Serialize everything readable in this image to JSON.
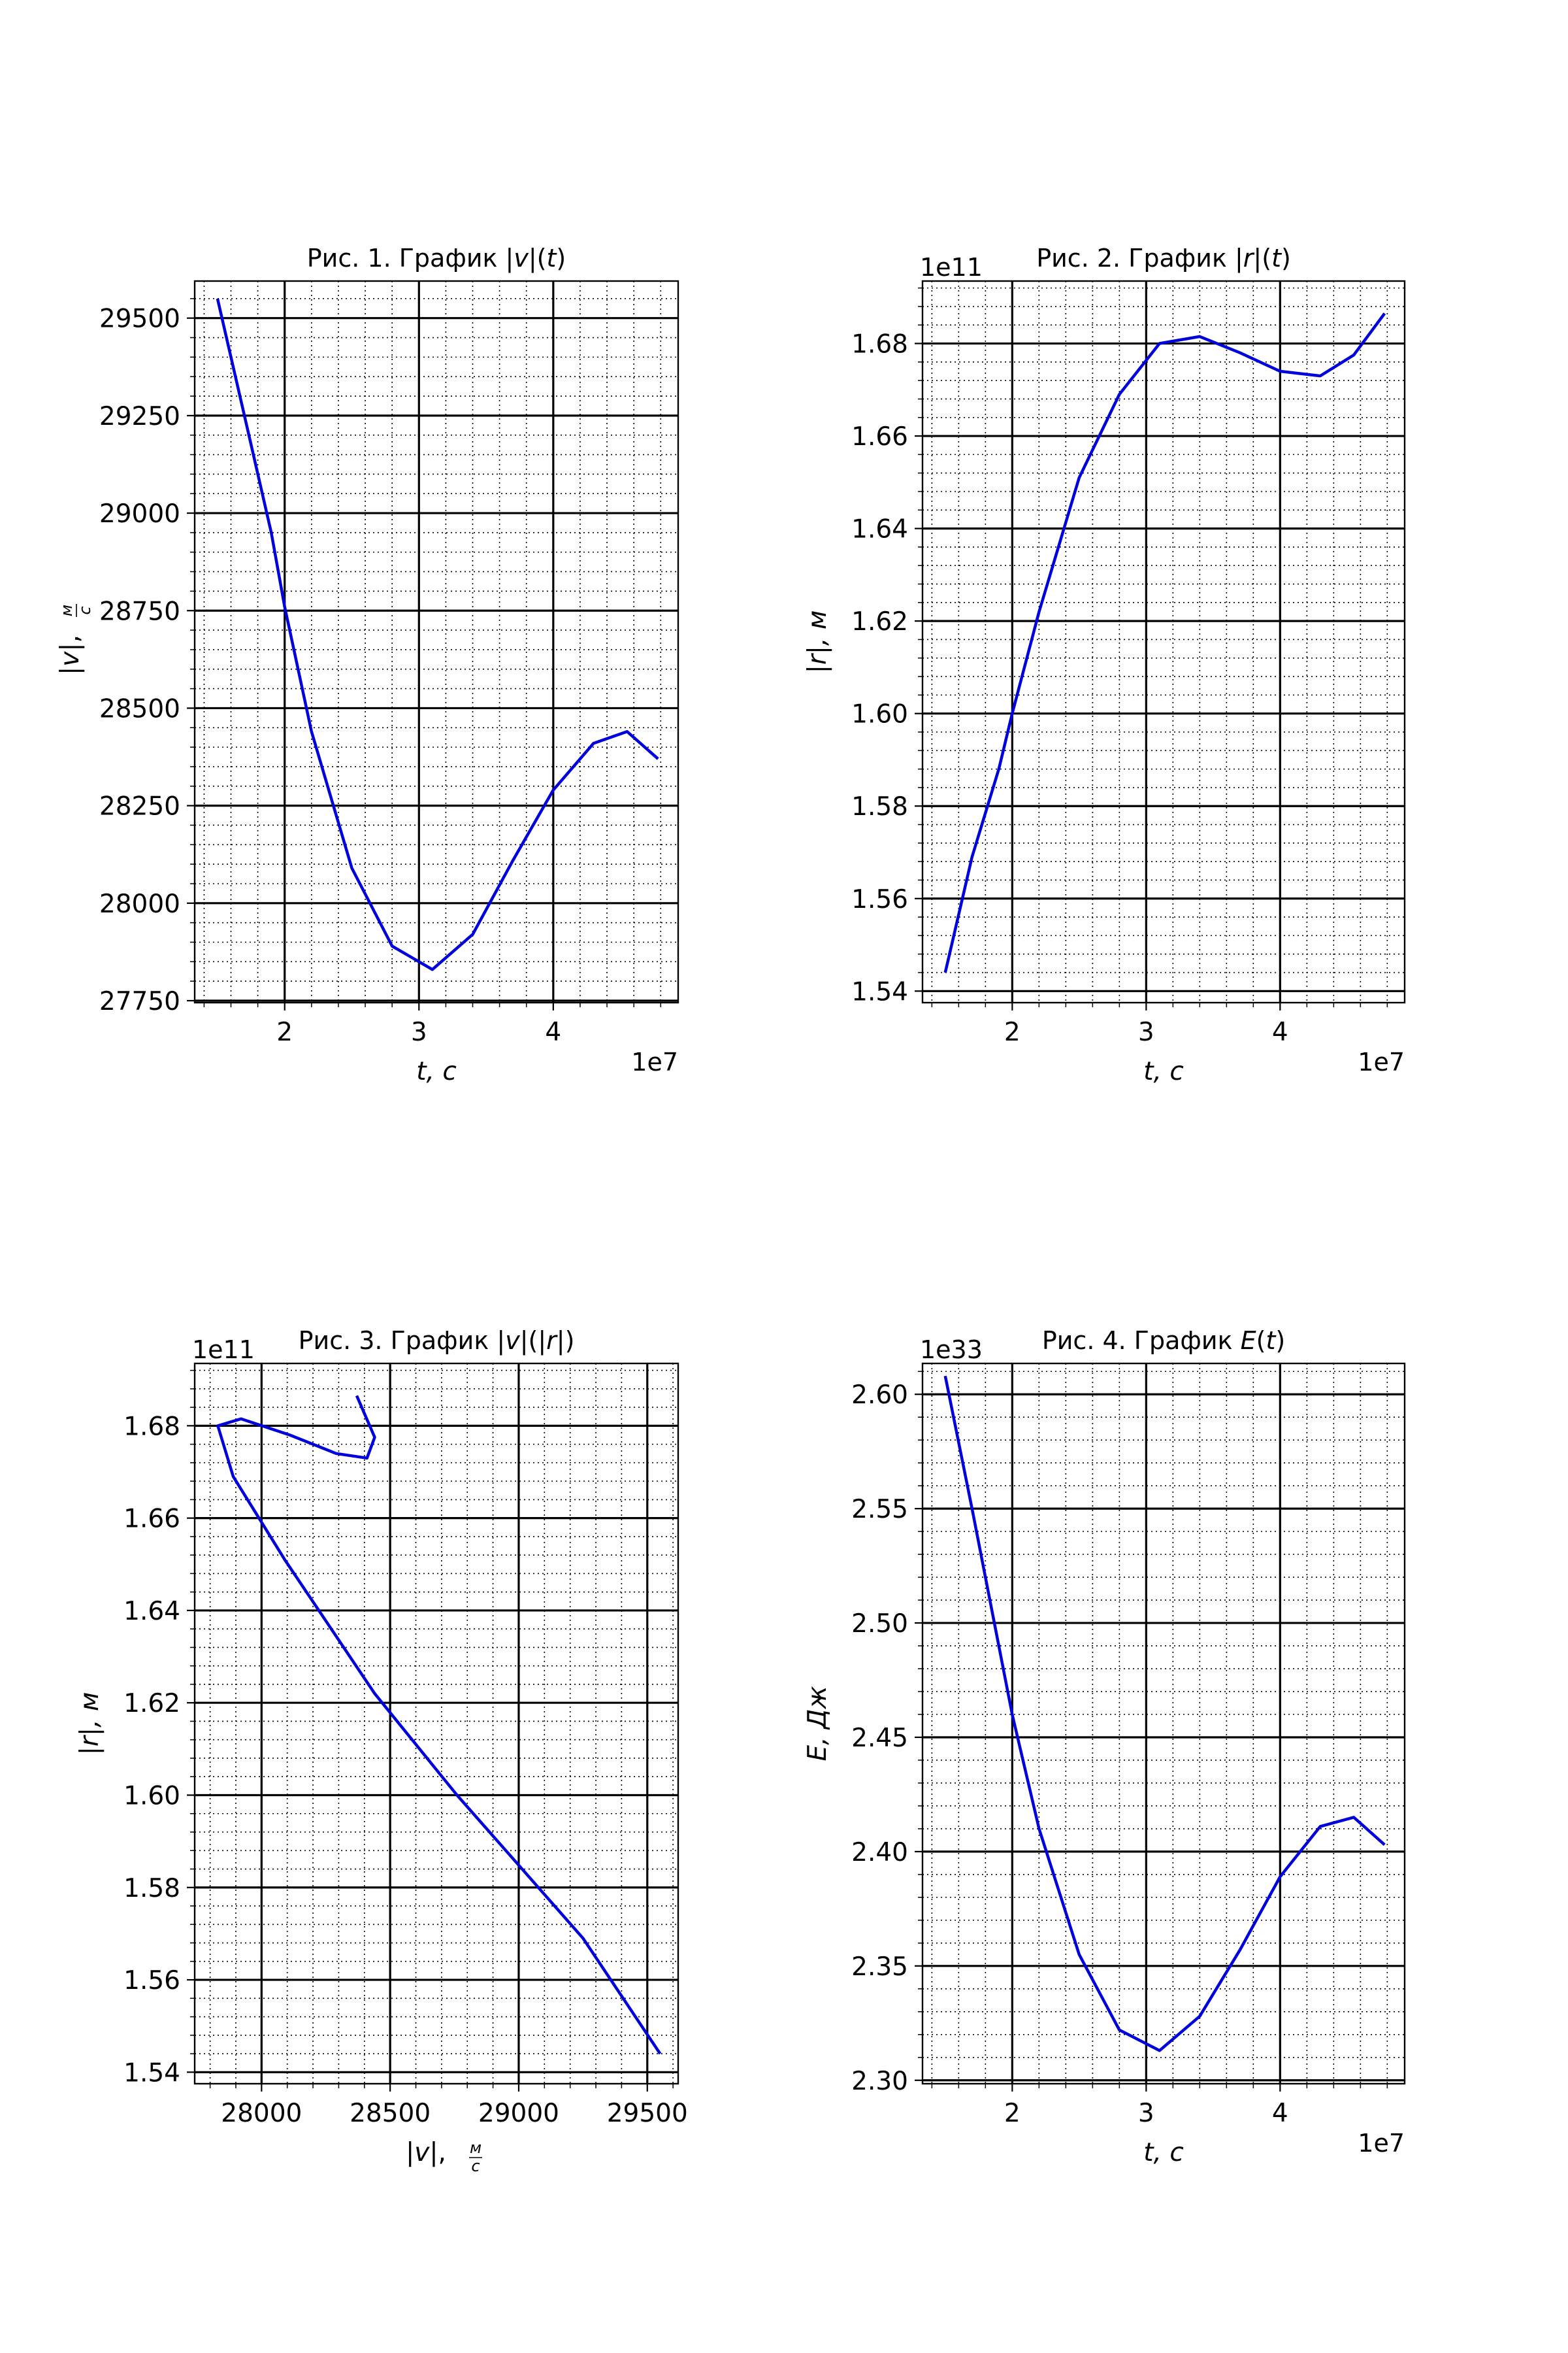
{
  "chart_data": [
    {
      "type": "line",
      "title": "Рис. 1. График |v|(t)",
      "xlabel": "t, c",
      "ylabel": "|v|, м/c",
      "x_offset_label": "1e7",
      "y_offset_label": "",
      "xlim": [
        1.33,
        4.93
      ],
      "ylim": [
        27745,
        29595
      ],
      "xticks": [
        2,
        3,
        4
      ],
      "xtick_labels": [
        "2",
        "3",
        "4"
      ],
      "yticks": [
        27750,
        28000,
        28250,
        28500,
        28750,
        29000,
        29250,
        29500
      ],
      "ytick_labels": [
        "27750",
        "28000",
        "28250",
        "28500",
        "28750",
        "29000",
        "29250",
        "29500"
      ],
      "grid": true,
      "color": "#0000dd",
      "x": [
        1.5,
        1.7,
        1.9,
        2.0,
        2.2,
        2.5,
        2.8,
        3.1,
        3.4,
        3.7,
        4.0,
        4.3,
        4.55,
        4.78
      ],
      "y": [
        29550,
        29250,
        28950,
        28760,
        28440,
        28090,
        27890,
        27830,
        27920,
        28110,
        28290,
        28410,
        28440,
        28370
      ]
    },
    {
      "type": "line",
      "title": "Рис. 2. График |r|(t)",
      "xlabel": "t, c",
      "ylabel": "|r|, м",
      "x_offset_label": "1e7",
      "y_offset_label": "1e11",
      "xlim": [
        1.33,
        4.93
      ],
      "ylim": [
        1.5375,
        1.6935
      ],
      "xticks": [
        2,
        3,
        4
      ],
      "xtick_labels": [
        "2",
        "3",
        "4"
      ],
      "yticks": [
        1.54,
        1.56,
        1.58,
        1.6,
        1.62,
        1.64,
        1.66,
        1.68
      ],
      "ytick_labels": [
        "1.54",
        "1.56",
        "1.58",
        "1.60",
        "1.62",
        "1.64",
        "1.66",
        "1.68"
      ],
      "grid": true,
      "color": "#0000dd",
      "x": [
        1.5,
        1.7,
        1.9,
        2.0,
        2.2,
        2.5,
        2.8,
        3.1,
        3.4,
        3.7,
        4.0,
        4.3,
        4.55,
        4.78
      ],
      "y": [
        1.544,
        1.569,
        1.588,
        1.6,
        1.622,
        1.651,
        1.669,
        1.68,
        1.6815,
        1.678,
        1.674,
        1.673,
        1.6775,
        1.6865
      ]
    },
    {
      "type": "line",
      "title": "Рис. 3. График |v|(|r|)",
      "xlabel": "|v|, м/c",
      "ylabel": "|r|, м",
      "x_offset_label": "",
      "y_offset_label": "1e11",
      "xlim": [
        27740,
        29620
      ],
      "ylim": [
        1.5375,
        1.6935
      ],
      "xticks": [
        28000,
        28500,
        29000,
        29500
      ],
      "xtick_labels": [
        "28000",
        "28500",
        "29000",
        "29500"
      ],
      "yticks": [
        1.54,
        1.56,
        1.58,
        1.6,
        1.62,
        1.64,
        1.66,
        1.68
      ],
      "ytick_labels": [
        "1.54",
        "1.56",
        "1.58",
        "1.60",
        "1.62",
        "1.64",
        "1.66",
        "1.68"
      ],
      "grid": true,
      "color": "#0000dd",
      "x": [
        29550,
        29250,
        28950,
        28760,
        28440,
        28090,
        27890,
        27830,
        27920,
        28110,
        28290,
        28410,
        28440,
        28370
      ],
      "y": [
        1.544,
        1.569,
        1.588,
        1.6,
        1.622,
        1.651,
        1.669,
        1.68,
        1.6815,
        1.678,
        1.674,
        1.673,
        1.6775,
        1.6865
      ]
    },
    {
      "type": "line",
      "title": "Рис. 4. График E(t)",
      "xlabel": "t, c",
      "ylabel": "E, Дж",
      "x_offset_label": "1e7",
      "y_offset_label": "1e33",
      "xlim": [
        1.33,
        4.93
      ],
      "ylim": [
        2.2985,
        2.6135
      ],
      "xticks": [
        2,
        3,
        4
      ],
      "xtick_labels": [
        "2",
        "3",
        "4"
      ],
      "yticks": [
        2.3,
        2.35,
        2.4,
        2.45,
        2.5,
        2.55,
        2.6
      ],
      "ytick_labels": [
        "2.30",
        "2.35",
        "2.40",
        "2.45",
        "2.50",
        "2.55",
        "2.60"
      ],
      "grid": true,
      "color": "#0000dd",
      "x": [
        1.5,
        1.7,
        1.9,
        2.0,
        2.2,
        2.5,
        2.8,
        3.1,
        3.4,
        3.7,
        4.0,
        4.3,
        4.55,
        4.78
      ],
      "y": [
        2.608,
        2.55,
        2.49,
        2.46,
        2.41,
        2.355,
        2.322,
        2.313,
        2.328,
        2.357,
        2.389,
        2.411,
        2.415,
        2.403
      ]
    }
  ]
}
